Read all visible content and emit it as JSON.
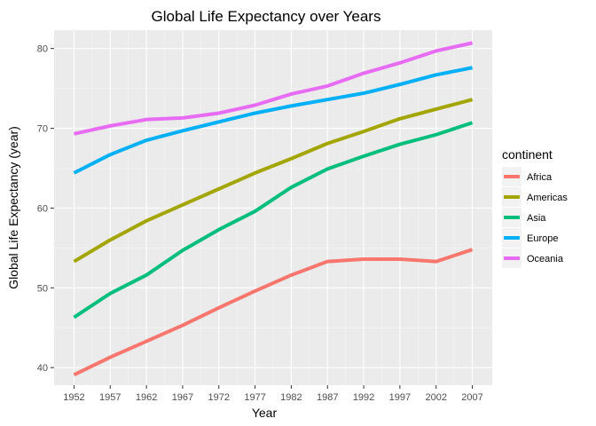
{
  "chart_data": {
    "type": "line",
    "title": "Global Life Expectancy over Years",
    "xlabel": "Year",
    "ylabel": "Global Life Expectancy (year)",
    "x": [
      1952,
      1957,
      1962,
      1967,
      1972,
      1977,
      1982,
      1987,
      1992,
      1997,
      2002,
      2007
    ],
    "xticks": [
      "1952",
      "1957",
      "1962",
      "1967",
      "1972",
      "1977",
      "1982",
      "1987",
      "1992",
      "1997",
      "2002",
      "2007"
    ],
    "yticks": [
      40,
      50,
      60,
      70,
      80
    ],
    "ylim": [
      37.8,
      82.3
    ],
    "grid": true,
    "legend_title": "continent",
    "legend_position": "right",
    "series": [
      {
        "name": "Africa",
        "color": "#F8766D",
        "values": [
          39.1,
          41.3,
          43.3,
          45.3,
          47.5,
          49.6,
          51.6,
          53.3,
          53.6,
          53.6,
          53.3,
          54.8
        ]
      },
      {
        "name": "Americas",
        "color": "#A3A500",
        "values": [
          53.3,
          56.0,
          58.4,
          60.4,
          62.4,
          64.4,
          66.2,
          68.1,
          69.6,
          71.2,
          72.4,
          73.6
        ]
      },
      {
        "name": "Asia",
        "color": "#00BF7D",
        "values": [
          46.3,
          49.3,
          51.6,
          54.7,
          57.3,
          59.6,
          62.6,
          64.9,
          66.5,
          68.0,
          69.2,
          70.7
        ]
      },
      {
        "name": "Europe",
        "color": "#00B0F6",
        "values": [
          64.4,
          66.7,
          68.5,
          69.7,
          70.8,
          71.9,
          72.8,
          73.6,
          74.4,
          75.5,
          76.7,
          77.6
        ]
      },
      {
        "name": "Oceania",
        "color": "#E76BF3",
        "values": [
          69.3,
          70.3,
          71.1,
          71.3,
          71.9,
          72.9,
          74.3,
          75.3,
          76.9,
          78.2,
          79.7,
          80.7
        ]
      }
    ]
  }
}
